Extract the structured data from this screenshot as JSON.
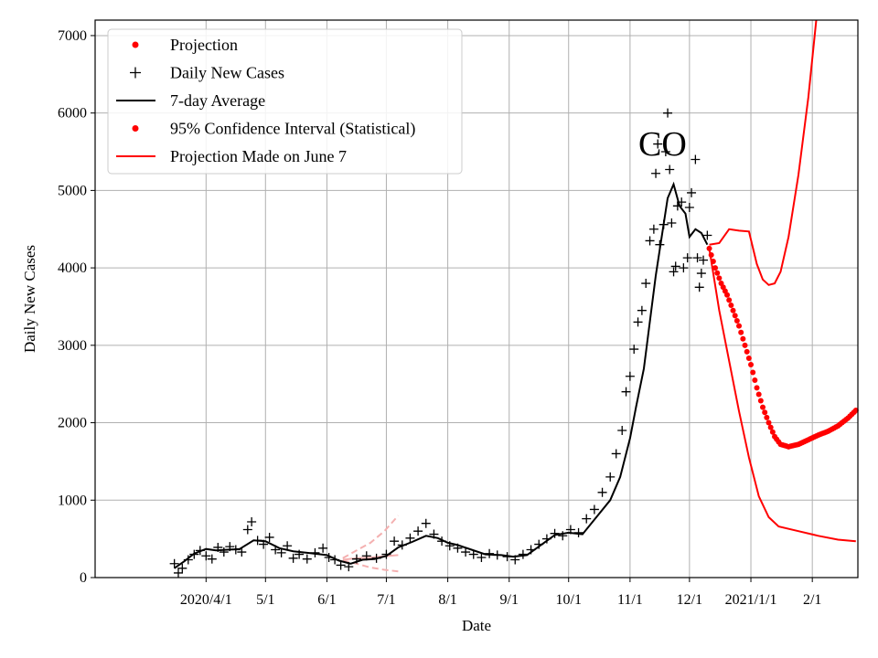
{
  "chart_data": {
    "type": "line",
    "title": "",
    "annotation": "CO",
    "xlabel": "Date",
    "ylabel": "Daily New Cases",
    "x_axis": {
      "unit": "days since 2020-03-01",
      "range": [
        -25,
        360
      ],
      "ticks": [
        {
          "label": "2020/4/1",
          "day": 31
        },
        {
          "label": "5/1",
          "day": 61
        },
        {
          "label": "6/1",
          "day": 92
        },
        {
          "label": "7/1",
          "day": 122
        },
        {
          "label": "8/1",
          "day": 153
        },
        {
          "label": "9/1",
          "day": 184
        },
        {
          "label": "10/1",
          "day": 214
        },
        {
          "label": "11/1",
          "day": 245
        },
        {
          "label": "12/1",
          "day": 275
        },
        {
          "label": "2021/1/1",
          "day": 306
        },
        {
          "label": "2/1",
          "day": 337
        }
      ]
    },
    "y_axis": {
      "range": [
        0,
        7200
      ],
      "ticks": [
        0,
        1000,
        2000,
        3000,
        4000,
        5000,
        6000,
        7000
      ]
    },
    "grid": true,
    "legend": {
      "position": "top-left",
      "entries": [
        {
          "label": "Projection",
          "marker": "dot",
          "color": "#ff0000"
        },
        {
          "label": "Daily New Cases",
          "marker": "plus",
          "color": "#000000"
        },
        {
          "label": "7-day Average",
          "marker": "line",
          "color": "#000000"
        },
        {
          "label": "95% Confidence Interval (Statistical)",
          "marker": "dot",
          "color": "#ff0000"
        },
        {
          "label": "Projection Made on June 7",
          "marker": "line",
          "color": "#ff0000"
        }
      ]
    },
    "colors": {
      "projection": "#ff0000",
      "cases": "#000000",
      "average": "#000000",
      "june_projection": "#f4b0b0",
      "grid": "#b0b0b0"
    },
    "series": {
      "seven_day_average": [
        [
          15,
          120
        ],
        [
          20,
          210
        ],
        [
          25,
          310
        ],
        [
          31,
          370
        ],
        [
          36,
          350
        ],
        [
          42,
          360
        ],
        [
          48,
          370
        ],
        [
          55,
          480
        ],
        [
          61,
          470
        ],
        [
          68,
          380
        ],
        [
          75,
          340
        ],
        [
          82,
          320
        ],
        [
          92,
          290
        ],
        [
          98,
          220
        ],
        [
          104,
          180
        ],
        [
          110,
          230
        ],
        [
          116,
          240
        ],
        [
          122,
          280
        ],
        [
          128,
          390
        ],
        [
          135,
          460
        ],
        [
          142,
          540
        ],
        [
          148,
          510
        ],
        [
          153,
          450
        ],
        [
          158,
          420
        ],
        [
          165,
          360
        ],
        [
          172,
          300
        ],
        [
          180,
          290
        ],
        [
          186,
          270
        ],
        [
          193,
          290
        ],
        [
          200,
          420
        ],
        [
          207,
          550
        ],
        [
          214,
          580
        ],
        [
          221,
          560
        ],
        [
          228,
          780
        ],
        [
          235,
          1000
        ],
        [
          240,
          1300
        ],
        [
          245,
          1800
        ],
        [
          248,
          2200
        ],
        [
          252,
          2700
        ],
        [
          255,
          3300
        ],
        [
          258,
          3900
        ],
        [
          261,
          4400
        ],
        [
          264,
          4900
        ],
        [
          267,
          5080
        ],
        [
          270,
          4800
        ],
        [
          273,
          4700
        ],
        [
          275,
          4400
        ],
        [
          278,
          4500
        ],
        [
          281,
          4450
        ],
        [
          284,
          4300
        ]
      ],
      "daily_new_cases": [
        [
          15,
          180
        ],
        [
          17,
          60
        ],
        [
          19,
          120
        ],
        [
          22,
          230
        ],
        [
          25,
          300
        ],
        [
          28,
          350
        ],
        [
          31,
          280
        ],
        [
          34,
          240
        ],
        [
          37,
          390
        ],
        [
          40,
          330
        ],
        [
          43,
          400
        ],
        [
          46,
          360
        ],
        [
          49,
          330
        ],
        [
          52,
          620
        ],
        [
          54,
          720
        ],
        [
          57,
          480
        ],
        [
          60,
          430
        ],
        [
          63,
          520
        ],
        [
          66,
          360
        ],
        [
          69,
          320
        ],
        [
          72,
          410
        ],
        [
          75,
          250
        ],
        [
          78,
          300
        ],
        [
          82,
          240
        ],
        [
          86,
          320
        ],
        [
          90,
          380
        ],
        [
          93,
          260
        ],
        [
          96,
          230
        ],
        [
          99,
          160
        ],
        [
          103,
          140
        ],
        [
          107,
          240
        ],
        [
          112,
          280
        ],
        [
          117,
          250
        ],
        [
          122,
          300
        ],
        [
          126,
          470
        ],
        [
          130,
          420
        ],
        [
          134,
          510
        ],
        [
          138,
          600
        ],
        [
          142,
          700
        ],
        [
          146,
          560
        ],
        [
          150,
          470
        ],
        [
          154,
          410
        ],
        [
          158,
          380
        ],
        [
          162,
          330
        ],
        [
          166,
          300
        ],
        [
          170,
          260
        ],
        [
          174,
          310
        ],
        [
          178,
          290
        ],
        [
          183,
          270
        ],
        [
          187,
          230
        ],
        [
          191,
          300
        ],
        [
          195,
          360
        ],
        [
          199,
          430
        ],
        [
          203,
          500
        ],
        [
          207,
          570
        ],
        [
          211,
          540
        ],
        [
          215,
          620
        ],
        [
          219,
          580
        ],
        [
          223,
          760
        ],
        [
          227,
          880
        ],
        [
          231,
          1100
        ],
        [
          235,
          1300
        ],
        [
          238,
          1600
        ],
        [
          241,
          1900
        ],
        [
          243,
          2400
        ],
        [
          245,
          2600
        ],
        [
          247,
          2950
        ],
        [
          249,
          3300
        ],
        [
          251,
          3450
        ],
        [
          253,
          3800
        ],
        [
          255,
          4350
        ],
        [
          257,
          4500
        ],
        [
          258,
          5220
        ],
        [
          259,
          5600
        ],
        [
          260,
          4300
        ],
        [
          262,
          4560
        ],
        [
          263,
          5500
        ],
        [
          264,
          6000
        ],
        [
          265,
          5270
        ],
        [
          266,
          4580
        ],
        [
          267,
          3950
        ],
        [
          268,
          4020
        ],
        [
          269,
          4800
        ],
        [
          271,
          4850
        ],
        [
          272,
          4000
        ],
        [
          274,
          4130
        ],
        [
          275,
          4780
        ],
        [
          276,
          4970
        ],
        [
          278,
          5400
        ],
        [
          279,
          4130
        ],
        [
          280,
          3750
        ],
        [
          281,
          3930
        ],
        [
          282,
          4100
        ],
        [
          284,
          4420
        ]
      ],
      "projection_dots": [
        [
          285,
          4250
        ],
        [
          288,
          4000
        ],
        [
          291,
          3800
        ],
        [
          294,
          3650
        ],
        [
          297,
          3450
        ],
        [
          300,
          3250
        ],
        [
          303,
          3000
        ],
        [
          306,
          2750
        ],
        [
          309,
          2450
        ],
        [
          312,
          2200
        ],
        [
          315,
          2000
        ],
        [
          318,
          1820
        ],
        [
          321,
          1720
        ],
        [
          325,
          1690
        ],
        [
          330,
          1720
        ],
        [
          335,
          1780
        ],
        [
          340,
          1840
        ],
        [
          345,
          1890
        ],
        [
          350,
          1960
        ],
        [
          355,
          2060
        ],
        [
          359,
          2160
        ]
      ],
      "ci_upper": [
        [
          285,
          4300
        ],
        [
          290,
          4320
        ],
        [
          295,
          4500
        ],
        [
          300,
          4480
        ],
        [
          305,
          4470
        ],
        [
          309,
          4050
        ],
        [
          312,
          3850
        ],
        [
          315,
          3780
        ],
        [
          318,
          3800
        ],
        [
          321,
          3950
        ],
        [
          325,
          4400
        ],
        [
          330,
          5200
        ],
        [
          335,
          6200
        ],
        [
          339,
          7200
        ]
      ],
      "ci_lower": [
        [
          285,
          4250
        ],
        [
          290,
          3450
        ],
        [
          295,
          2800
        ],
        [
          300,
          2150
        ],
        [
          305,
          1550
        ],
        [
          310,
          1050
        ],
        [
          315,
          780
        ],
        [
          320,
          660
        ],
        [
          330,
          600
        ],
        [
          340,
          540
        ],
        [
          350,
          490
        ],
        [
          359,
          470
        ]
      ],
      "june_projection_center": [
        [
          100,
          230
        ],
        [
          107,
          250
        ],
        [
          114,
          260
        ],
        [
          121,
          275
        ],
        [
          128,
          290
        ]
      ],
      "june_projection_upper": [
        [
          100,
          250
        ],
        [
          107,
          350
        ],
        [
          114,
          450
        ],
        [
          121,
          600
        ],
        [
          128,
          800
        ]
      ],
      "june_projection_lower": [
        [
          100,
          220
        ],
        [
          107,
          180
        ],
        [
          114,
          130
        ],
        [
          121,
          100
        ],
        [
          128,
          80
        ]
      ]
    }
  }
}
